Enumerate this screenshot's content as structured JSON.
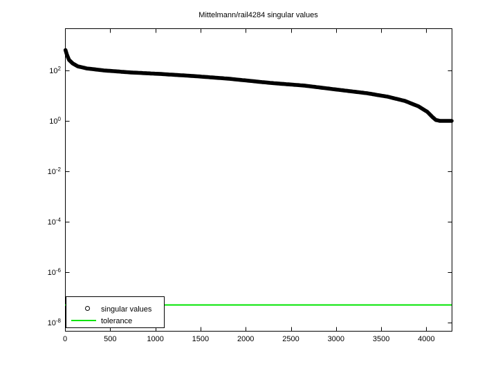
{
  "window": {
    "background": "#ffffff"
  },
  "chart_data": {
    "type": "line",
    "title": "Mittelmann/rail4284 singular values",
    "xlabel": "",
    "ylabel": "",
    "grid": false,
    "axis_color": "#000000",
    "xlim": [
      0,
      4280
    ],
    "ylim_log10": [
      -8.33,
      3.67
    ],
    "x_ticks": [
      0,
      500,
      1000,
      1500,
      2000,
      2500,
      3000,
      3500,
      4000
    ],
    "y_tick_base": "10",
    "y_tick_exponents": [
      2,
      0,
      -2,
      -4,
      -6,
      -8
    ],
    "series": [
      {
        "name": "singular values",
        "type": "scatter-markers",
        "marker": "o",
        "color": "#000000",
        "points": [
          [
            5,
            640
          ],
          [
            20,
            430
          ],
          [
            45,
            260
          ],
          [
            85,
            190
          ],
          [
            140,
            146
          ],
          [
            240,
            120
          ],
          [
            430,
            100
          ],
          [
            730,
            83
          ],
          [
            1040,
            73
          ],
          [
            1420,
            60
          ],
          [
            1810,
            47
          ],
          [
            2270,
            32
          ],
          [
            2650,
            25
          ],
          [
            3030,
            17
          ],
          [
            3340,
            12.5
          ],
          [
            3570,
            9.1
          ],
          [
            3760,
            6.2
          ],
          [
            3910,
            3.8
          ],
          [
            4010,
            2.3
          ],
          [
            4065,
            1.45
          ],
          [
            4105,
            1.08
          ],
          [
            4150,
            1.0
          ],
          [
            4280,
            1.0
          ]
        ]
      },
      {
        "name": "tolerance",
        "type": "hline",
        "color": "#00e400",
        "value": 5e-08
      }
    ],
    "legend": {
      "position": "bottom-left",
      "items": [
        {
          "label": "singular values",
          "marker": "circle",
          "color": "#000000"
        },
        {
          "label": "tolerance",
          "marker": "line",
          "color": "#00e400"
        }
      ]
    }
  }
}
